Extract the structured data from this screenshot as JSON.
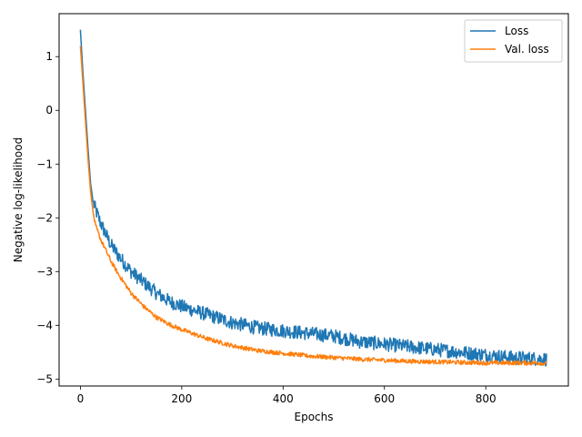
{
  "chart_data": {
    "type": "line",
    "title": "",
    "xlabel": "Epochs",
    "ylabel": "Negative log-likelihood",
    "xlim": [
      -42,
      963
    ],
    "ylim": [
      -5.13,
      1.8
    ],
    "x_ticks": [
      0,
      200,
      400,
      600,
      800
    ],
    "y_ticks": [
      -5,
      -4,
      -3,
      -2,
      -1,
      0,
      1
    ],
    "grid": false,
    "legend_position": "top-right",
    "n_epochs": 920,
    "series": [
      {
        "name": "Loss",
        "color": "#1f77b4",
        "noise": 0.13,
        "x": [
          0,
          5,
          10,
          15,
          20,
          25,
          30,
          40,
          50,
          60,
          75,
          100,
          125,
          150,
          175,
          200,
          250,
          300,
          350,
          400,
          450,
          500,
          550,
          600,
          650,
          700,
          750,
          800,
          850,
          900,
          920
        ],
        "y": [
          1.5,
          0.7,
          0.0,
          -0.7,
          -1.35,
          -1.7,
          -1.85,
          -2.1,
          -2.3,
          -2.5,
          -2.7,
          -3.0,
          -3.2,
          -3.4,
          -3.55,
          -3.65,
          -3.8,
          -3.95,
          -4.05,
          -4.1,
          -4.15,
          -4.2,
          -4.3,
          -4.35,
          -4.4,
          -4.45,
          -4.5,
          -4.55,
          -4.6,
          -4.62,
          -4.63
        ]
      },
      {
        "name": "Val. loss",
        "color": "#ff7f0e",
        "noise": 0.04,
        "x": [
          0,
          5,
          10,
          15,
          20,
          25,
          30,
          40,
          50,
          60,
          75,
          100,
          125,
          150,
          175,
          200,
          250,
          300,
          350,
          400,
          450,
          500,
          550,
          600,
          650,
          700,
          750,
          800,
          850,
          900,
          920
        ],
        "y": [
          1.2,
          0.5,
          -0.2,
          -0.9,
          -1.5,
          -1.9,
          -2.15,
          -2.4,
          -2.6,
          -2.8,
          -3.05,
          -3.4,
          -3.65,
          -3.85,
          -3.98,
          -4.08,
          -4.25,
          -4.38,
          -4.47,
          -4.52,
          -4.57,
          -4.6,
          -4.63,
          -4.65,
          -4.67,
          -4.68,
          -4.69,
          -4.7,
          -4.7,
          -4.7,
          -4.71
        ]
      }
    ]
  }
}
